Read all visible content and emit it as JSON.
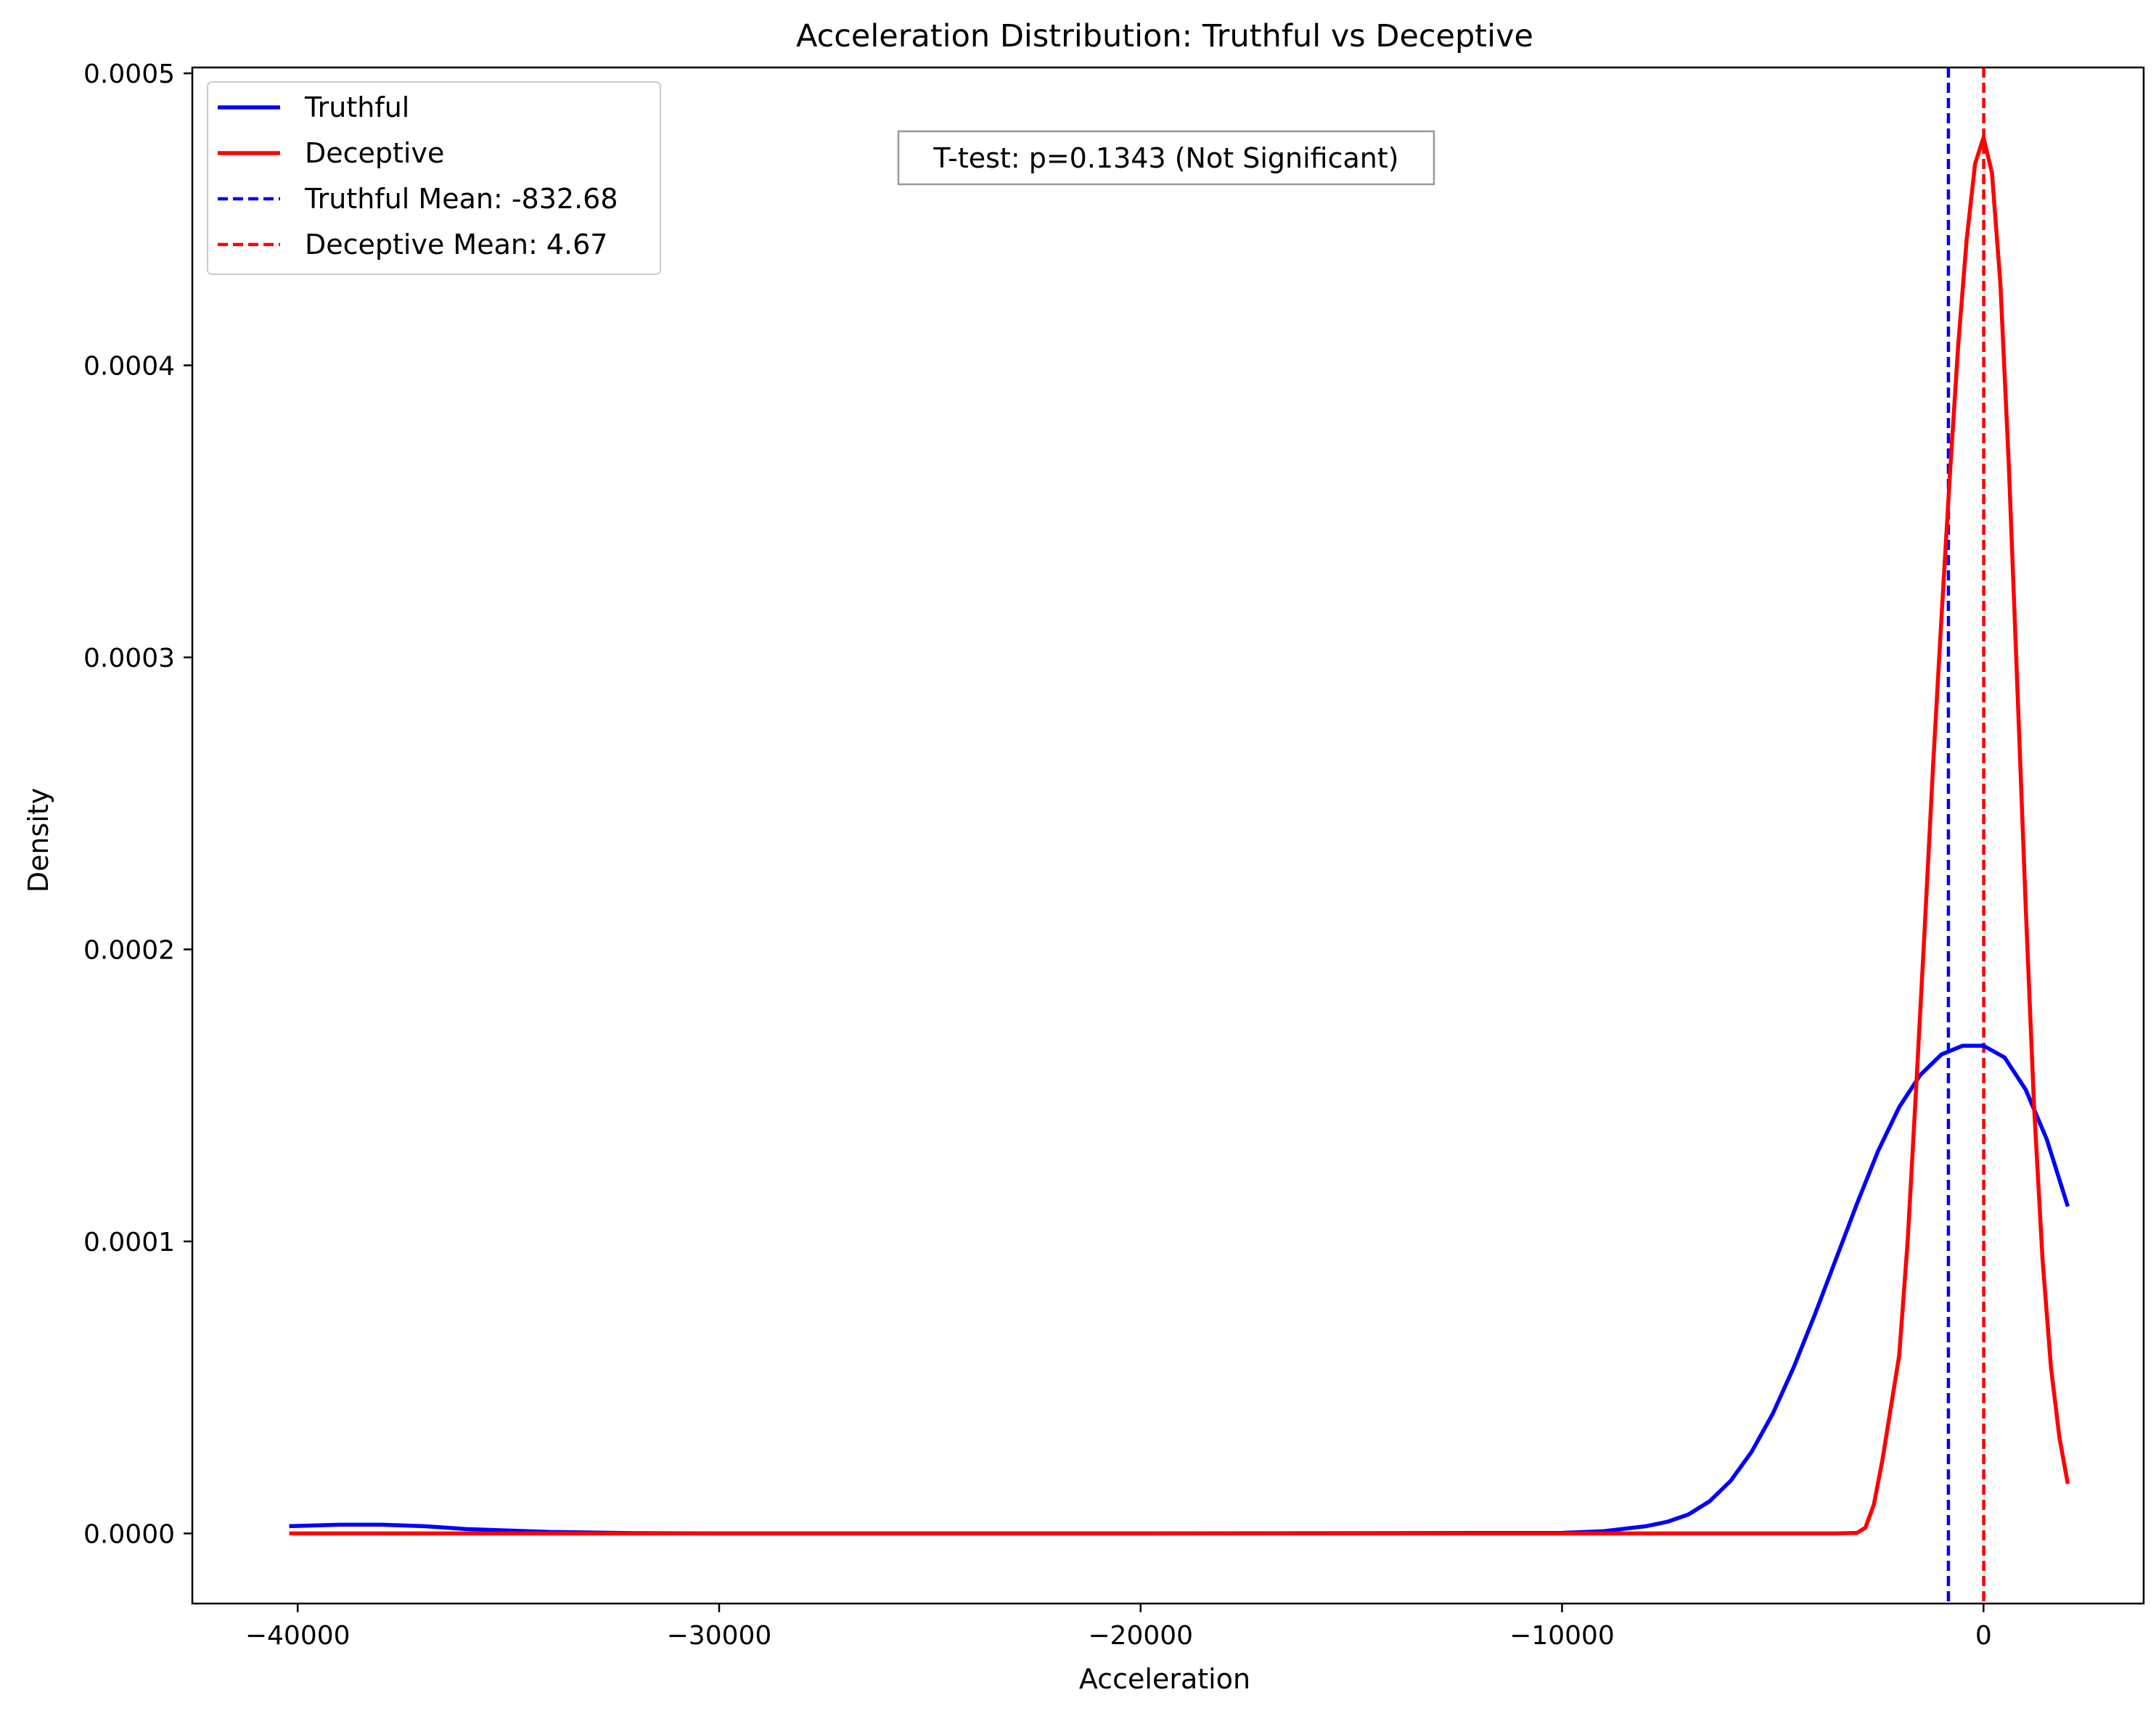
{
  "chart_data": {
    "type": "line",
    "title": "Acceleration Distribution: Truthful vs Deceptive",
    "xlabel": "Acceleration",
    "ylabel": "Density",
    "xlim": [
      -42500,
      3800
    ],
    "ylim": [
      -2.4e-05,
      0.000502
    ],
    "xticks": [
      -40000,
      -30000,
      -20000,
      -10000,
      0
    ],
    "xtick_labels": [
      "−40000",
      "−30000",
      "−20000",
      "−10000",
      "0"
    ],
    "yticks": [
      0.0,
      0.0001,
      0.0002,
      0.0003,
      0.0004,
      0.0005
    ],
    "ytick_labels": [
      "0.0000",
      "0.0001",
      "0.0002",
      "0.0003",
      "0.0004",
      "0.0005"
    ],
    "grid": false,
    "legend_position": "top-left",
    "annotation": "T-test: p=0.1343 (Not Significant)",
    "series": [
      {
        "name": "Truthful",
        "color": "#0000ff",
        "style": "solid",
        "x": [
          -40200,
          -39000,
          -38000,
          -37000,
          -36000,
          -35000,
          -34000,
          -32000,
          -30000,
          -20000,
          -10000,
          -9000,
          -8000,
          -7500,
          -7000,
          -6500,
          -6000,
          -5500,
          -5000,
          -4500,
          -4000,
          -3500,
          -3000,
          -2500,
          -2000,
          -1500,
          -1000,
          -500,
          0,
          500,
          1000,
          1500,
          2000
        ],
        "y": [
          2.5e-06,
          3e-06,
          3e-06,
          2.5e-06,
          1.5e-06,
          1e-06,
          5e-07,
          1e-07,
          0.0,
          0.0,
          2e-07,
          8e-07,
          2.5e-06,
          4e-06,
          6.5e-06,
          1.1e-05,
          1.8e-05,
          2.8e-05,
          4.1e-05,
          5.7e-05,
          7.5e-05,
          9.4e-05,
          0.000113,
          0.000131,
          0.000146,
          0.000157,
          0.000164,
          0.000167,
          0.000167,
          0.000163,
          0.000152,
          0.000135,
          0.000112
        ]
      },
      {
        "name": "Deceptive",
        "color": "#ff0000",
        "style": "solid",
        "x": [
          -40200,
          -30000,
          -20000,
          -10000,
          -3500,
          -3000,
          -2800,
          -2600,
          -2400,
          -2200,
          -2000,
          -1800,
          -1600,
          -1400,
          -1200,
          -1000,
          -800,
          -600,
          -400,
          -200,
          0,
          200,
          400,
          600,
          800,
          1000,
          1200,
          1400,
          1600,
          1800,
          2000
        ],
        "y": [
          0.0,
          0.0,
          0.0,
          0.0,
          0.0,
          2e-07,
          2e-06,
          1e-05,
          2.5e-05,
          4.3e-05,
          6.1e-05,
          0.0001,
          0.000152,
          0.000206,
          0.000262,
          0.000313,
          0.000362,
          0.000407,
          0.000443,
          0.000469,
          0.000478,
          0.000466,
          0.000428,
          0.000366,
          0.000291,
          0.000215,
          0.000146,
          9.4e-05,
          5.7e-05,
          3.3e-05,
          1.7e-05
        ]
      },
      {
        "name": "Truthful Mean: -832.68",
        "color": "#0000ff",
        "style": "dashed",
        "vline": -832.68
      },
      {
        "name": "Deceptive Mean: 4.67",
        "color": "#ff0000",
        "style": "dashed",
        "vline": 4.67
      }
    ]
  }
}
